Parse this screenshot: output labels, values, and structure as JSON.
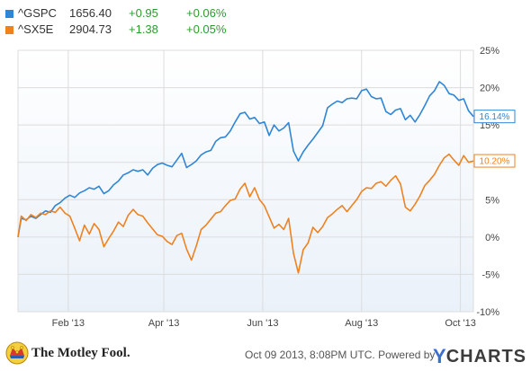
{
  "legend": [
    {
      "symbol": "^GSPC",
      "last": "1656.40",
      "change": "+0.95",
      "pct": "+0.06%",
      "color": "#2f86d6"
    },
    {
      "symbol": "^SX5E",
      "last": "2904.73",
      "change": "+1.38",
      "pct": "+0.05%",
      "color": "#ef8220"
    }
  ],
  "footer": {
    "brand": "The Motley Fool.",
    "date": "Oct 09 2013, 8:08PM UTC. Powered by",
    "ycharts_y": "Y",
    "ycharts_rest": "CHARTS"
  },
  "chart_data": {
    "type": "line",
    "x_ticks": [
      "Feb '13",
      "Apr '13",
      "Jun '13",
      "Aug '13",
      "Oct '13"
    ],
    "x_tick_dates": [
      "2013-02-01",
      "2013-04-01",
      "2013-06-01",
      "2013-08-01",
      "2013-10-01"
    ],
    "x_range": [
      "2013-01-01",
      "2013-10-09"
    ],
    "ylim": [
      -10,
      25
    ],
    "y_ticks": [
      "25%",
      "20%",
      "15%",
      "10%",
      "5%",
      "0%",
      "-5%",
      "-10%"
    ],
    "y_tick_values": [
      25,
      20,
      15,
      10,
      5,
      0,
      -5,
      -10
    ],
    "grid": true,
    "series": [
      {
        "name": "^GSPC",
        "color": "#2f86d6",
        "end_label": "16.14%",
        "points": [
          [
            "2013-01-01",
            0.0
          ],
          [
            "2013-01-03",
            2.5
          ],
          [
            "2013-01-06",
            2.3
          ],
          [
            "2013-01-09",
            2.8
          ],
          [
            "2013-01-12",
            2.5
          ],
          [
            "2013-01-15",
            3.0
          ],
          [
            "2013-01-18",
            3.5
          ],
          [
            "2013-01-21",
            3.3
          ],
          [
            "2013-01-24",
            4.2
          ],
          [
            "2013-01-27",
            4.6
          ],
          [
            "2013-01-30",
            5.2
          ],
          [
            "2013-02-02",
            5.6
          ],
          [
            "2013-02-05",
            5.3
          ],
          [
            "2013-02-08",
            5.9
          ],
          [
            "2013-02-11",
            6.2
          ],
          [
            "2013-02-14",
            6.6
          ],
          [
            "2013-02-17",
            6.4
          ],
          [
            "2013-02-20",
            6.8
          ],
          [
            "2013-02-23",
            5.8
          ],
          [
            "2013-02-26",
            6.2
          ],
          [
            "2013-03-01",
            7.0
          ],
          [
            "2013-03-04",
            7.5
          ],
          [
            "2013-03-07",
            8.3
          ],
          [
            "2013-03-10",
            8.6
          ],
          [
            "2013-03-13",
            9.0
          ],
          [
            "2013-03-16",
            8.8
          ],
          [
            "2013-03-19",
            9.0
          ],
          [
            "2013-03-22",
            8.3
          ],
          [
            "2013-03-25",
            9.2
          ],
          [
            "2013-03-28",
            9.7
          ],
          [
            "2013-03-31",
            9.9
          ],
          [
            "2013-04-03",
            9.6
          ],
          [
            "2013-04-06",
            9.4
          ],
          [
            "2013-04-09",
            10.3
          ],
          [
            "2013-04-12",
            11.2
          ],
          [
            "2013-04-15",
            9.3
          ],
          [
            "2013-04-18",
            9.7
          ],
          [
            "2013-04-21",
            10.2
          ],
          [
            "2013-04-24",
            11.0
          ],
          [
            "2013-04-27",
            11.4
          ],
          [
            "2013-04-30",
            11.6
          ],
          [
            "2013-05-03",
            12.8
          ],
          [
            "2013-05-06",
            13.3
          ],
          [
            "2013-05-09",
            13.4
          ],
          [
            "2013-05-12",
            14.2
          ],
          [
            "2013-05-15",
            15.4
          ],
          [
            "2013-05-18",
            16.5
          ],
          [
            "2013-05-21",
            16.7
          ],
          [
            "2013-05-24",
            15.8
          ],
          [
            "2013-05-27",
            16.0
          ],
          [
            "2013-05-30",
            15.2
          ],
          [
            "2013-06-02",
            15.4
          ],
          [
            "2013-06-05",
            13.6
          ],
          [
            "2013-06-08",
            15.0
          ],
          [
            "2013-06-11",
            14.2
          ],
          [
            "2013-06-14",
            14.6
          ],
          [
            "2013-06-17",
            15.3
          ],
          [
            "2013-06-20",
            11.5
          ],
          [
            "2013-06-23",
            10.2
          ],
          [
            "2013-06-26",
            11.4
          ],
          [
            "2013-06-29",
            12.3
          ],
          [
            "2013-07-02",
            13.1
          ],
          [
            "2013-07-05",
            14.0
          ],
          [
            "2013-07-08",
            14.9
          ],
          [
            "2013-07-11",
            17.3
          ],
          [
            "2013-07-14",
            17.8
          ],
          [
            "2013-07-17",
            18.2
          ],
          [
            "2013-07-20",
            18.0
          ],
          [
            "2013-07-23",
            18.5
          ],
          [
            "2013-07-26",
            18.6
          ],
          [
            "2013-07-29",
            18.5
          ],
          [
            "2013-08-01",
            19.6
          ],
          [
            "2013-08-04",
            19.8
          ],
          [
            "2013-08-07",
            18.8
          ],
          [
            "2013-08-10",
            18.5
          ],
          [
            "2013-08-13",
            18.6
          ],
          [
            "2013-08-16",
            16.8
          ],
          [
            "2013-08-19",
            16.4
          ],
          [
            "2013-08-22",
            17.0
          ],
          [
            "2013-08-25",
            17.2
          ],
          [
            "2013-08-28",
            15.7
          ],
          [
            "2013-08-31",
            16.3
          ],
          [
            "2013-09-03",
            15.4
          ],
          [
            "2013-09-06",
            16.4
          ],
          [
            "2013-09-09",
            17.6
          ],
          [
            "2013-09-12",
            18.9
          ],
          [
            "2013-09-15",
            19.6
          ],
          [
            "2013-09-18",
            20.8
          ],
          [
            "2013-09-21",
            20.3
          ],
          [
            "2013-09-24",
            19.2
          ],
          [
            "2013-09-27",
            19.0
          ],
          [
            "2013-09-30",
            18.3
          ],
          [
            "2013-10-03",
            18.5
          ],
          [
            "2013-10-06",
            16.9
          ],
          [
            "2013-10-09",
            16.14
          ]
        ]
      },
      {
        "name": "^SX5E",
        "color": "#ef8220",
        "end_label": "10.20%",
        "points": [
          [
            "2013-01-01",
            0.0
          ],
          [
            "2013-01-03",
            2.8
          ],
          [
            "2013-01-06",
            2.2
          ],
          [
            "2013-01-09",
            3.0
          ],
          [
            "2013-01-12",
            2.6
          ],
          [
            "2013-01-15",
            3.2
          ],
          [
            "2013-01-18",
            3.0
          ],
          [
            "2013-01-21",
            3.5
          ],
          [
            "2013-01-24",
            3.3
          ],
          [
            "2013-01-27",
            4.0
          ],
          [
            "2013-01-30",
            3.2
          ],
          [
            "2013-02-02",
            2.8
          ],
          [
            "2013-02-05",
            1.2
          ],
          [
            "2013-02-08",
            -0.5
          ],
          [
            "2013-02-11",
            1.6
          ],
          [
            "2013-02-14",
            0.4
          ],
          [
            "2013-02-17",
            1.8
          ],
          [
            "2013-02-20",
            1.0
          ],
          [
            "2013-02-23",
            -1.3
          ],
          [
            "2013-02-26",
            -0.2
          ],
          [
            "2013-03-01",
            0.8
          ],
          [
            "2013-03-04",
            2.0
          ],
          [
            "2013-03-07",
            1.4
          ],
          [
            "2013-03-10",
            2.9
          ],
          [
            "2013-03-13",
            3.7
          ],
          [
            "2013-03-16",
            3.0
          ],
          [
            "2013-03-19",
            2.8
          ],
          [
            "2013-03-22",
            1.9
          ],
          [
            "2013-03-25",
            1.1
          ],
          [
            "2013-03-28",
            0.3
          ],
          [
            "2013-03-31",
            0.1
          ],
          [
            "2013-04-03",
            -0.6
          ],
          [
            "2013-04-06",
            -1.0
          ],
          [
            "2013-04-09",
            0.2
          ],
          [
            "2013-04-12",
            0.5
          ],
          [
            "2013-04-15",
            -1.6
          ],
          [
            "2013-04-18",
            -3.1
          ],
          [
            "2013-04-21",
            -1.2
          ],
          [
            "2013-04-24",
            1.0
          ],
          [
            "2013-04-27",
            1.6
          ],
          [
            "2013-04-30",
            2.4
          ],
          [
            "2013-05-03",
            3.2
          ],
          [
            "2013-05-06",
            3.4
          ],
          [
            "2013-05-09",
            4.2
          ],
          [
            "2013-05-12",
            4.9
          ],
          [
            "2013-05-15",
            5.1
          ],
          [
            "2013-05-18",
            6.4
          ],
          [
            "2013-05-21",
            7.2
          ],
          [
            "2013-05-24",
            5.4
          ],
          [
            "2013-05-27",
            6.6
          ],
          [
            "2013-05-30",
            5.0
          ],
          [
            "2013-06-02",
            4.2
          ],
          [
            "2013-06-05",
            2.7
          ],
          [
            "2013-06-08",
            1.2
          ],
          [
            "2013-06-11",
            1.7
          ],
          [
            "2013-06-14",
            1.0
          ],
          [
            "2013-06-17",
            2.5
          ],
          [
            "2013-06-20",
            -2.2
          ],
          [
            "2013-06-23",
            -4.8
          ],
          [
            "2013-06-26",
            -1.7
          ],
          [
            "2013-06-29",
            -0.8
          ],
          [
            "2013-07-02",
            1.3
          ],
          [
            "2013-07-05",
            0.6
          ],
          [
            "2013-07-08",
            1.4
          ],
          [
            "2013-07-11",
            2.6
          ],
          [
            "2013-07-14",
            3.1
          ],
          [
            "2013-07-17",
            3.7
          ],
          [
            "2013-07-20",
            4.2
          ],
          [
            "2013-07-23",
            3.4
          ],
          [
            "2013-07-26",
            4.2
          ],
          [
            "2013-07-29",
            5.0
          ],
          [
            "2013-08-01",
            6.1
          ],
          [
            "2013-08-04",
            6.6
          ],
          [
            "2013-08-07",
            6.5
          ],
          [
            "2013-08-10",
            7.2
          ],
          [
            "2013-08-13",
            7.4
          ],
          [
            "2013-08-16",
            6.8
          ],
          [
            "2013-08-19",
            7.6
          ],
          [
            "2013-08-22",
            8.2
          ],
          [
            "2013-08-25",
            7.1
          ],
          [
            "2013-08-28",
            4.0
          ],
          [
            "2013-08-31",
            3.5
          ],
          [
            "2013-09-03",
            4.4
          ],
          [
            "2013-09-06",
            5.5
          ],
          [
            "2013-09-09",
            6.9
          ],
          [
            "2013-09-12",
            7.6
          ],
          [
            "2013-09-15",
            8.4
          ],
          [
            "2013-09-18",
            9.6
          ],
          [
            "2013-09-21",
            10.6
          ],
          [
            "2013-09-24",
            11.1
          ],
          [
            "2013-09-27",
            10.3
          ],
          [
            "2013-09-30",
            9.6
          ],
          [
            "2013-10-03",
            10.9
          ],
          [
            "2013-10-06",
            10.0
          ],
          [
            "2013-10-09",
            10.2
          ]
        ]
      }
    ]
  }
}
